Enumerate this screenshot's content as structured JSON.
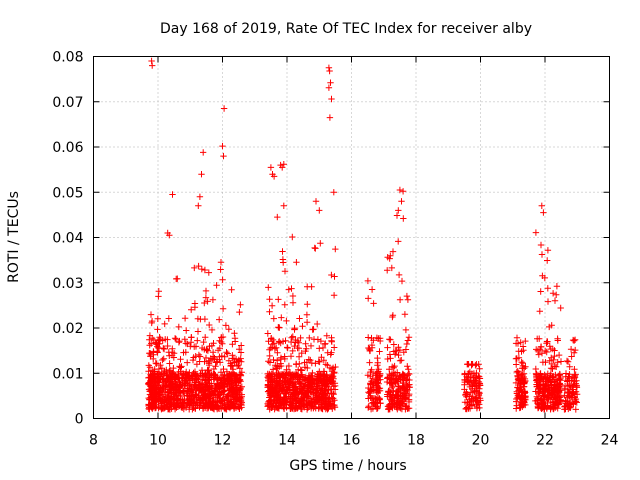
{
  "chart_data": {
    "type": "scatter",
    "title": "Day 168 of 2019, Rate Of TEC Index for receiver alby",
    "xlabel": "GPS time / hours",
    "ylabel": "ROTI / TECUs",
    "xlim": [
      8,
      24
    ],
    "ylim": [
      0,
      0.08
    ],
    "xticks": [
      "8",
      "10",
      "12",
      "14",
      "16",
      "18",
      "20",
      "22",
      "24"
    ],
    "yticks": [
      "0",
      "0.01",
      "0.02",
      "0.03",
      "0.04",
      "0.05",
      "0.06",
      "0.07",
      "0.08"
    ],
    "grid": true,
    "marker": "+",
    "color": "#ff0000",
    "highlights": [
      [
        9.8,
        0.079
      ],
      [
        9.82,
        0.078
      ],
      [
        12.05,
        0.0685
      ],
      [
        12.0,
        0.0602
      ],
      [
        12.03,
        0.058
      ],
      [
        11.4,
        0.0588
      ],
      [
        11.35,
        0.054
      ],
      [
        13.5,
        0.0555
      ],
      [
        13.55,
        0.054
      ],
      [
        13.6,
        0.0535
      ],
      [
        13.8,
        0.056
      ],
      [
        13.85,
        0.0555
      ],
      [
        13.9,
        0.0562
      ],
      [
        15.3,
        0.0775
      ],
      [
        15.32,
        0.0768
      ],
      [
        15.35,
        0.0742
      ],
      [
        15.3,
        0.0731
      ],
      [
        15.38,
        0.0706
      ],
      [
        15.33,
        0.0665
      ],
      [
        15.45,
        0.05
      ],
      [
        17.5,
        0.0505
      ],
      [
        17.6,
        0.0502
      ],
      [
        21.9,
        0.047
      ],
      [
        21.95,
        0.0455
      ],
      [
        10.45,
        0.0495
      ],
      [
        10.3,
        0.041
      ],
      [
        10.35,
        0.0405
      ],
      [
        11.3,
        0.049
      ],
      [
        11.25,
        0.047
      ],
      [
        13.7,
        0.0445
      ],
      [
        13.9,
        0.047
      ],
      [
        14.9,
        0.048
      ],
      [
        15.0,
        0.046
      ],
      [
        17.55,
        0.048
      ],
      [
        17.45,
        0.046
      ]
    ],
    "clusters": [
      {
        "x": [
          9.7,
          10.0
        ],
        "ymax": 0.023,
        "n": 170
      },
      {
        "x": [
          10.0,
          10.5
        ],
        "ymax": 0.03,
        "n": 190
      },
      {
        "x": [
          10.5,
          11.0
        ],
        "ymax": 0.036,
        "n": 170
      },
      {
        "x": [
          11.0,
          11.5
        ],
        "ymax": 0.04,
        "n": 180
      },
      {
        "x": [
          11.5,
          12.0
        ],
        "ymax": 0.035,
        "n": 190
      },
      {
        "x": [
          12.0,
          12.6
        ],
        "ymax": 0.032,
        "n": 230
      },
      {
        "x": [
          13.4,
          13.8
        ],
        "ymax": 0.032,
        "n": 190
      },
      {
        "x": [
          13.8,
          14.3
        ],
        "ymax": 0.042,
        "n": 200
      },
      {
        "x": [
          14.3,
          14.8
        ],
        "ymax": 0.03,
        "n": 180
      },
      {
        "x": [
          14.8,
          15.5
        ],
        "ymax": 0.04,
        "n": 240
      },
      {
        "x": [
          16.5,
          16.9
        ],
        "ymax": 0.032,
        "n": 110
      },
      {
        "x": [
          17.1,
          17.8
        ],
        "ymax": 0.045,
        "n": 230
      },
      {
        "x": [
          19.5,
          20.0
        ],
        "ymax": 0.012,
        "n": 110
      },
      {
        "x": [
          21.1,
          21.4
        ],
        "ymax": 0.024,
        "n": 110
      },
      {
        "x": [
          21.7,
          22.5
        ],
        "ymax": 0.042,
        "n": 290
      },
      {
        "x": [
          22.6,
          23.0
        ],
        "ymax": 0.019,
        "n": 90
      }
    ]
  }
}
